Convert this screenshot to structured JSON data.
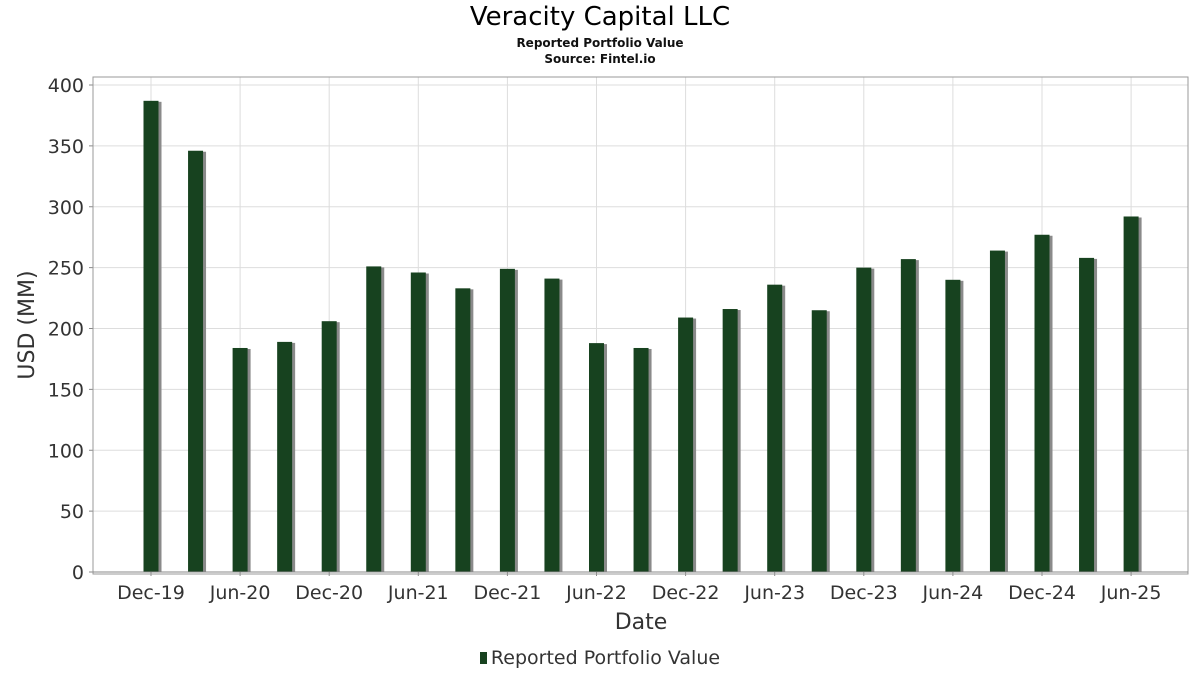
{
  "chart_data": {
    "type": "bar",
    "title": "Veracity Capital LLC",
    "subtitle": "Reported Portfolio Value",
    "source": "Source: Fintel.io",
    "xlabel": "Date",
    "ylabel": "USD (MM)",
    "ylim": [
      0,
      400
    ],
    "yticks": [
      0,
      50,
      100,
      150,
      200,
      250,
      300,
      350,
      400
    ],
    "xtick_labels": [
      "Dec-19",
      "Jun-20",
      "Dec-20",
      "Jun-21",
      "Dec-21",
      "Jun-22",
      "Dec-22",
      "Jun-23",
      "Dec-23",
      "Jun-24",
      "Dec-24",
      "Jun-25"
    ],
    "categories": [
      "Dec-19",
      "Mar-20",
      "Jun-20",
      "Sep-20",
      "Dec-20",
      "Mar-21",
      "Jun-21",
      "Sep-21",
      "Dec-21",
      "Mar-22",
      "Jun-22",
      "Sep-22",
      "Dec-22",
      "Mar-23",
      "Jun-23",
      "Sep-23",
      "Dec-23",
      "Mar-24",
      "Jun-24",
      "Sep-24",
      "Dec-24",
      "Mar-25",
      "Jun-25"
    ],
    "series": [
      {
        "name": "Reported Portfolio Value",
        "color": "#17421f",
        "values": [
          387,
          346,
          184,
          189,
          206,
          251,
          246,
          233,
          249,
          241,
          188,
          184,
          209,
          216,
          236,
          215,
          250,
          257,
          240,
          264,
          277,
          258,
          292
        ]
      }
    ],
    "grid": true,
    "legend_position": "bottom-center"
  }
}
